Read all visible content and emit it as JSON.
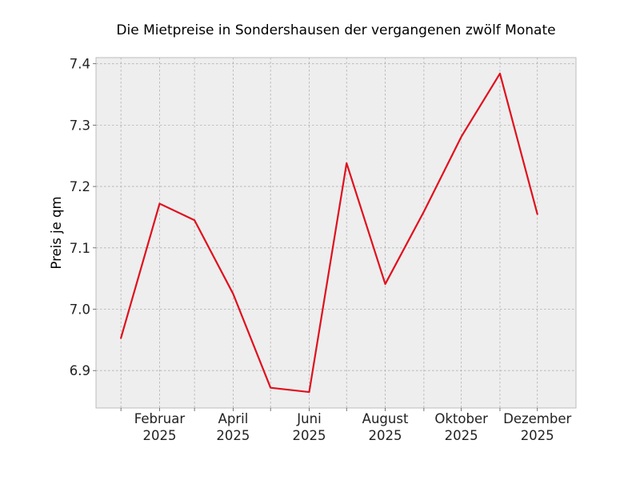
{
  "chart_data": {
    "type": "line",
    "title": "Die Mietpreise in Sondershausen der vergangenen zwölf Monate",
    "xlabel": "",
    "ylabel": "Preis je qm",
    "x": [
      "2025-01",
      "2025-02",
      "2025-03",
      "2025-04",
      "2025-05",
      "2025-06",
      "2025-07",
      "2025-08",
      "2025-09",
      "2025-10",
      "2025-11",
      "2025-12"
    ],
    "series": [
      {
        "values": [
          6.953,
          7.172,
          7.145,
          7.025,
          6.872,
          6.865,
          7.238,
          7.041,
          7.159,
          7.281,
          7.384,
          7.155
        ],
        "color": "#e0101e"
      }
    ],
    "x_ticks": [
      {
        "month": "2025-02",
        "label": [
          "Februar",
          "2025"
        ]
      },
      {
        "month": "2025-04",
        "label": [
          "April",
          "2025"
        ]
      },
      {
        "month": "2025-06",
        "label": [
          "Juni",
          "2025"
        ]
      },
      {
        "month": "2025-08",
        "label": [
          "August",
          "2025"
        ]
      },
      {
        "month": "2025-10",
        "label": [
          "Oktober",
          "2025"
        ]
      },
      {
        "month": "2025-12",
        "label": [
          "Dezember",
          "2025"
        ]
      }
    ],
    "y_ticks": [
      6.9,
      7.0,
      7.1,
      7.2,
      7.3,
      7.4
    ],
    "y_tick_labels": [
      "6.9",
      "7.0",
      "7.1",
      "7.2",
      "7.3",
      "7.4"
    ],
    "ylim": [
      6.839,
      7.41
    ],
    "xlim": [
      "2024-12-12",
      "2026-01-01"
    ],
    "grid": true,
    "background_color": "#eeeeee"
  }
}
